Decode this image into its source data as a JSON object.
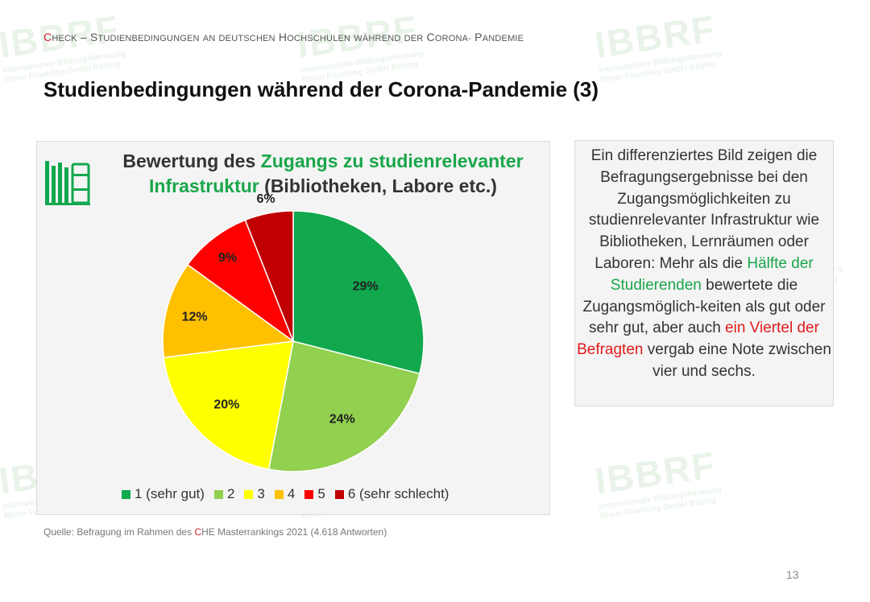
{
  "header": {
    "first_letter": "C",
    "rest_check": "HECK",
    "dash": " – ",
    "subtitle_words": [
      {
        "cap": "S",
        "rest": "TUDIENBEDINGUNGEN"
      },
      {
        "cap": "",
        "rest": "AN"
      },
      {
        "cap": "",
        "rest": "DEUTSCHEN"
      },
      {
        "cap": "H",
        "rest": "OCHSCHULEN"
      },
      {
        "cap": "",
        "rest": "WÄHREND"
      },
      {
        "cap": "",
        "rest": "DER"
      },
      {
        "cap": "C",
        "rest": "ORONA-"
      },
      {
        "cap": "P",
        "rest": "ANDEMIE"
      }
    ]
  },
  "title": "Studienbedingungen während der Corona-Pandemie (3)",
  "chart_data": {
    "type": "pie",
    "title_part1": "Bewertung des ",
    "title_highlight": "Zugangs zu studienrelevanter Infrastruktur",
    "title_part2": " (Bibliotheken, Labore etc.)",
    "categories": [
      "1 (sehr gut)",
      "2",
      "3",
      "4",
      "5",
      "6 (sehr schlecht)"
    ],
    "values": [
      29,
      24,
      20,
      12,
      9,
      6
    ],
    "labels": [
      "29%",
      "24%",
      "20%",
      "12%",
      "9%",
      "6%"
    ],
    "colors": [
      "#11a84e",
      "#92d050",
      "#ffff00",
      "#ffc000",
      "#ff0000",
      "#c00000"
    ],
    "legend_position": "bottom"
  },
  "text_box": {
    "part1": "Ein differenziertes Bild zeigen die Befragungsergebnisse bei den Zugangsmöglichkeiten zu studienrelevanter Infrastruktur wie Bibliotheken, Lernräumen oder Laboren: Mehr als die ",
    "green": "Hälfte der Studierenden",
    "part2": " bewertete die Zugangsmöglich-keiten als gut oder sehr gut, aber auch ",
    "red": "ein Viertel der Befragten",
    "part3": " vergab eine Note zwischen vier und sechs."
  },
  "source": {
    "before": "Quelle: Befragung im Rahmen des ",
    "accent": "C",
    "after": "HE Masterrankings 2021 (4.618 Antworten)"
  },
  "page_number": "13",
  "watermark": {
    "logo": "IBBRF",
    "line1": "Internationale Bildungsberatung",
    "line2": "Rhein Fruehling GmbH Beijing"
  }
}
